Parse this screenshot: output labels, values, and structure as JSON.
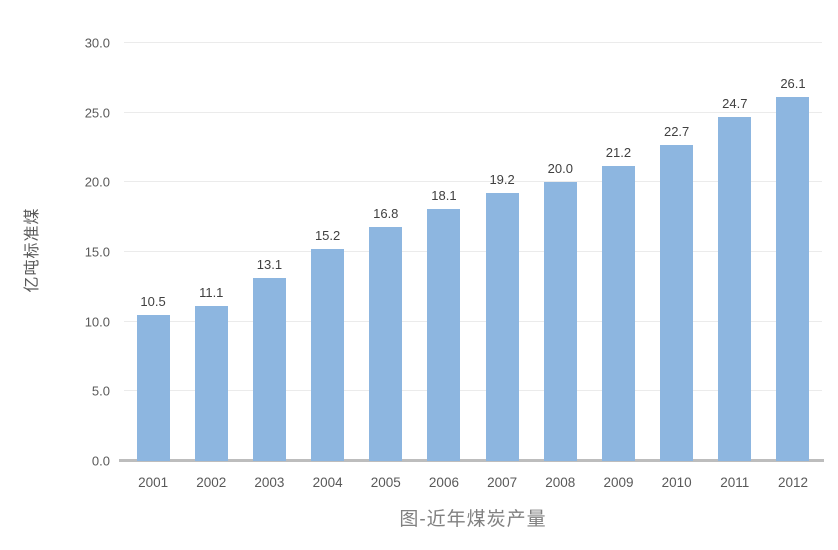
{
  "chart_data": {
    "type": "bar",
    "title": "图-近年煤炭产量",
    "xlabel": "",
    "ylabel": "亿吨标准煤",
    "categories": [
      "2001",
      "2002",
      "2003",
      "2004",
      "2005",
      "2006",
      "2007",
      "2008",
      "2009",
      "2010",
      "2011",
      "2012"
    ],
    "values": [
      10.5,
      11.1,
      13.1,
      15.2,
      16.8,
      18.1,
      19.2,
      20.0,
      21.2,
      22.7,
      24.7,
      26.1
    ],
    "value_labels": [
      "10.5",
      "11.1",
      "13.1",
      "15.2",
      "16.8",
      "18.1",
      "19.2",
      "20.0",
      "21.2",
      "22.7",
      "24.7",
      "26.1"
    ],
    "ylim": [
      0,
      30
    ],
    "yticks": [
      0,
      5,
      10,
      15,
      20,
      25,
      30
    ],
    "ytick_labels": [
      "0.0",
      "5.0",
      "10.0",
      "15.0",
      "20.0",
      "25.0",
      "30.0"
    ],
    "grid": true,
    "legend": "none",
    "colors": {
      "bar": "#8DB6E0",
      "gridline": "#EBEBEB",
      "baseline": "#BDBDBD",
      "label_text": "#404040",
      "axis_text": "#595959",
      "title_text": "#808080"
    }
  }
}
